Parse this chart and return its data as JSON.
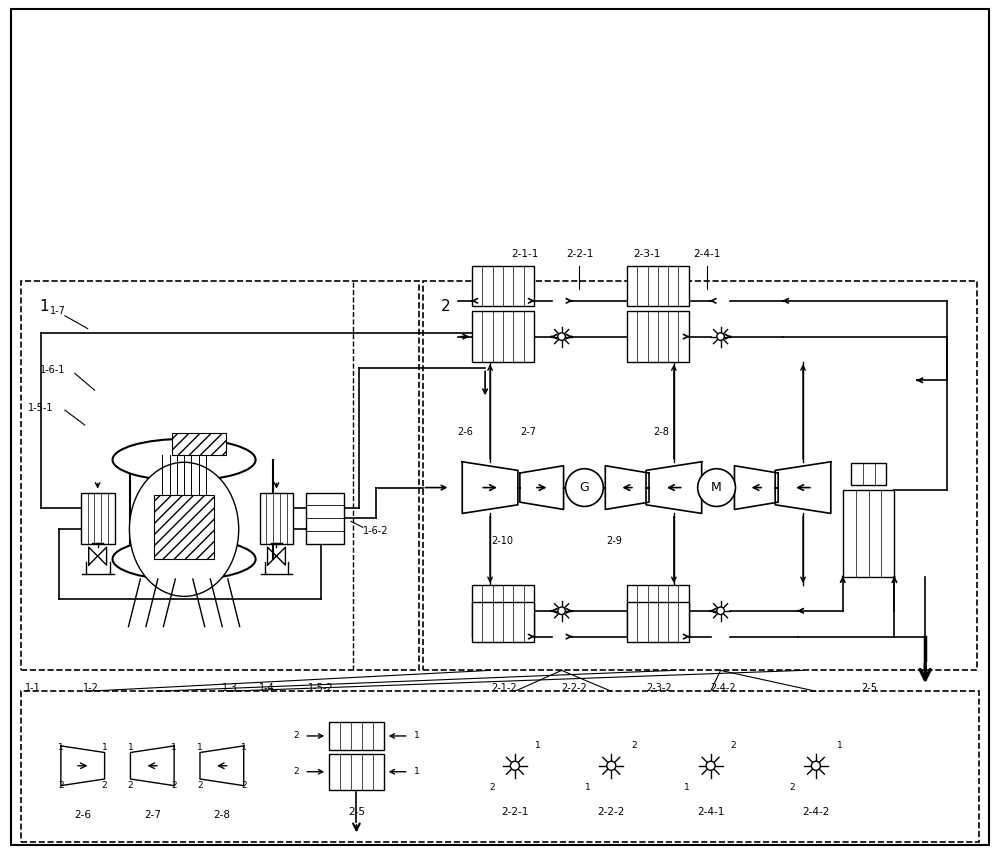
{
  "bg_color": "#ffffff",
  "line_color": "#000000",
  "top_labels": [
    "2-1-1",
    "2-2-1",
    "2-3-1",
    "2-4-1"
  ],
  "bottom_labels_sec1": [
    "1-1",
    "1-2",
    "1-3",
    "1-4",
    "1-5-2"
  ],
  "bottom_labels_sec2": [
    "2-1-2",
    "2-2-2",
    "2-3-2",
    "2-4-2",
    "2-5"
  ],
  "legend_turbine_labels": [
    "2-6",
    "2-7",
    "2-8"
  ],
  "legend_valve_labels": [
    "2-2-1",
    "2-2-2",
    "2-4-1",
    "2-4-2"
  ],
  "legend_he_label": "2-5",
  "mid_labels": [
    "2-6",
    "2-7",
    "2-8",
    "2-9",
    "2-10"
  ],
  "sec1_label": "1",
  "sec2_label": "2"
}
